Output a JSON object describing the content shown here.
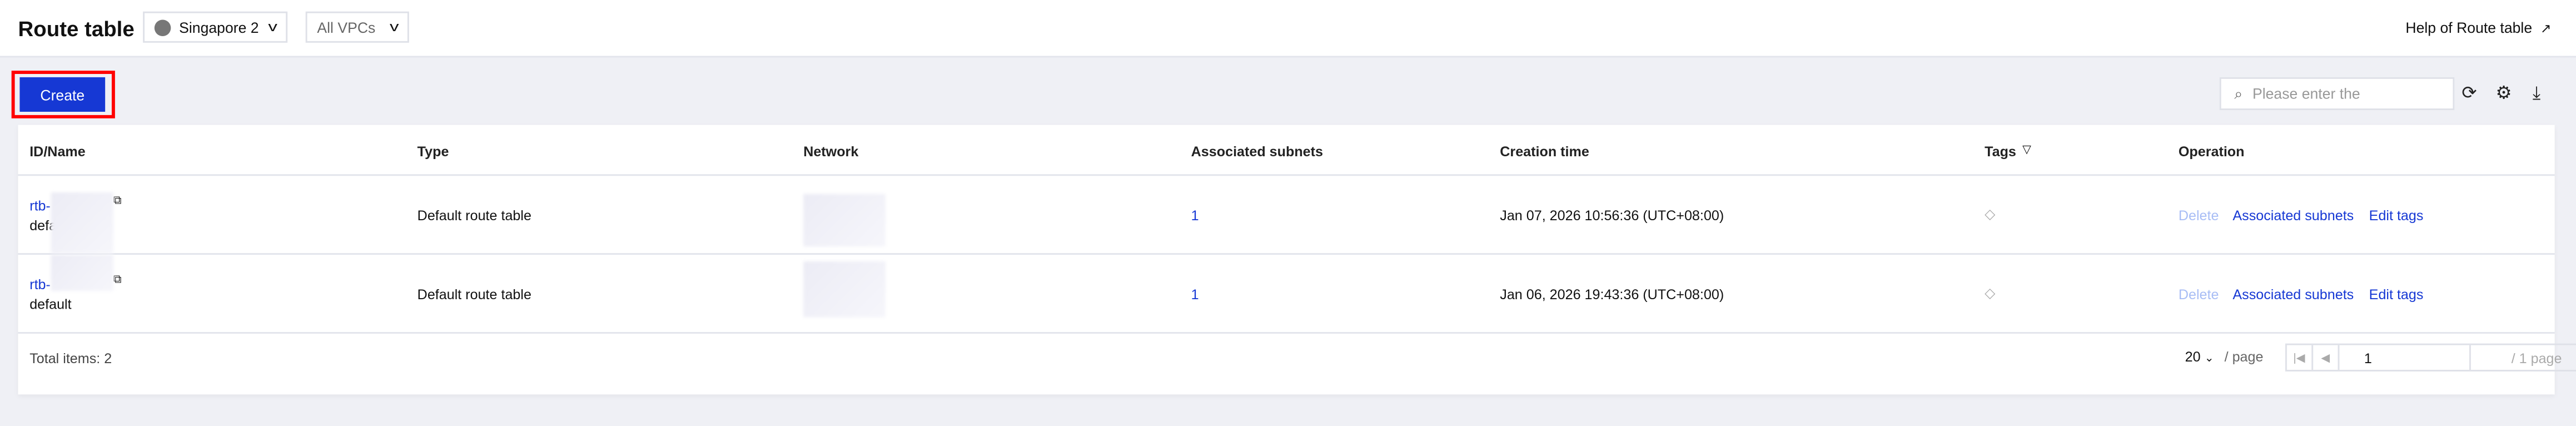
{
  "header": {
    "title": "Route table",
    "region": "Singapore 2",
    "vpc": "All VPCs",
    "help": "Help of Route table"
  },
  "toolbar": {
    "create": "Create",
    "search_placeholder": "Please enter the"
  },
  "table": {
    "columns": [
      "ID/Name",
      "Type",
      "Network",
      "Associated subnets",
      "Creation time",
      "Tags",
      "Operation"
    ],
    "rows": [
      {
        "id": "rtb-",
        "name": "default",
        "type": "Default route table",
        "subnets": "1",
        "created": "Jan 07, 2026 10:56:36 (UTC+08:00)",
        "ops": [
          "Delete",
          "Associated subnets",
          "Edit tags"
        ]
      },
      {
        "id": "rtb-",
        "name": "default",
        "type": "Default route table",
        "subnets": "1",
        "created": "Jan 06, 2026 19:43:36 (UTC+08:00)",
        "ops": [
          "Delete",
          "Associated subnets",
          "Edit tags"
        ]
      }
    ]
  },
  "footer": {
    "total": "Total items: 2",
    "page_size": "20",
    "per_page": "/ page",
    "page": "1",
    "page_total": "/ 1 page"
  },
  "colors": {
    "primary": "#1638d4",
    "highlight": "#ff0000",
    "disabled_link": "#a8bdf5"
  }
}
